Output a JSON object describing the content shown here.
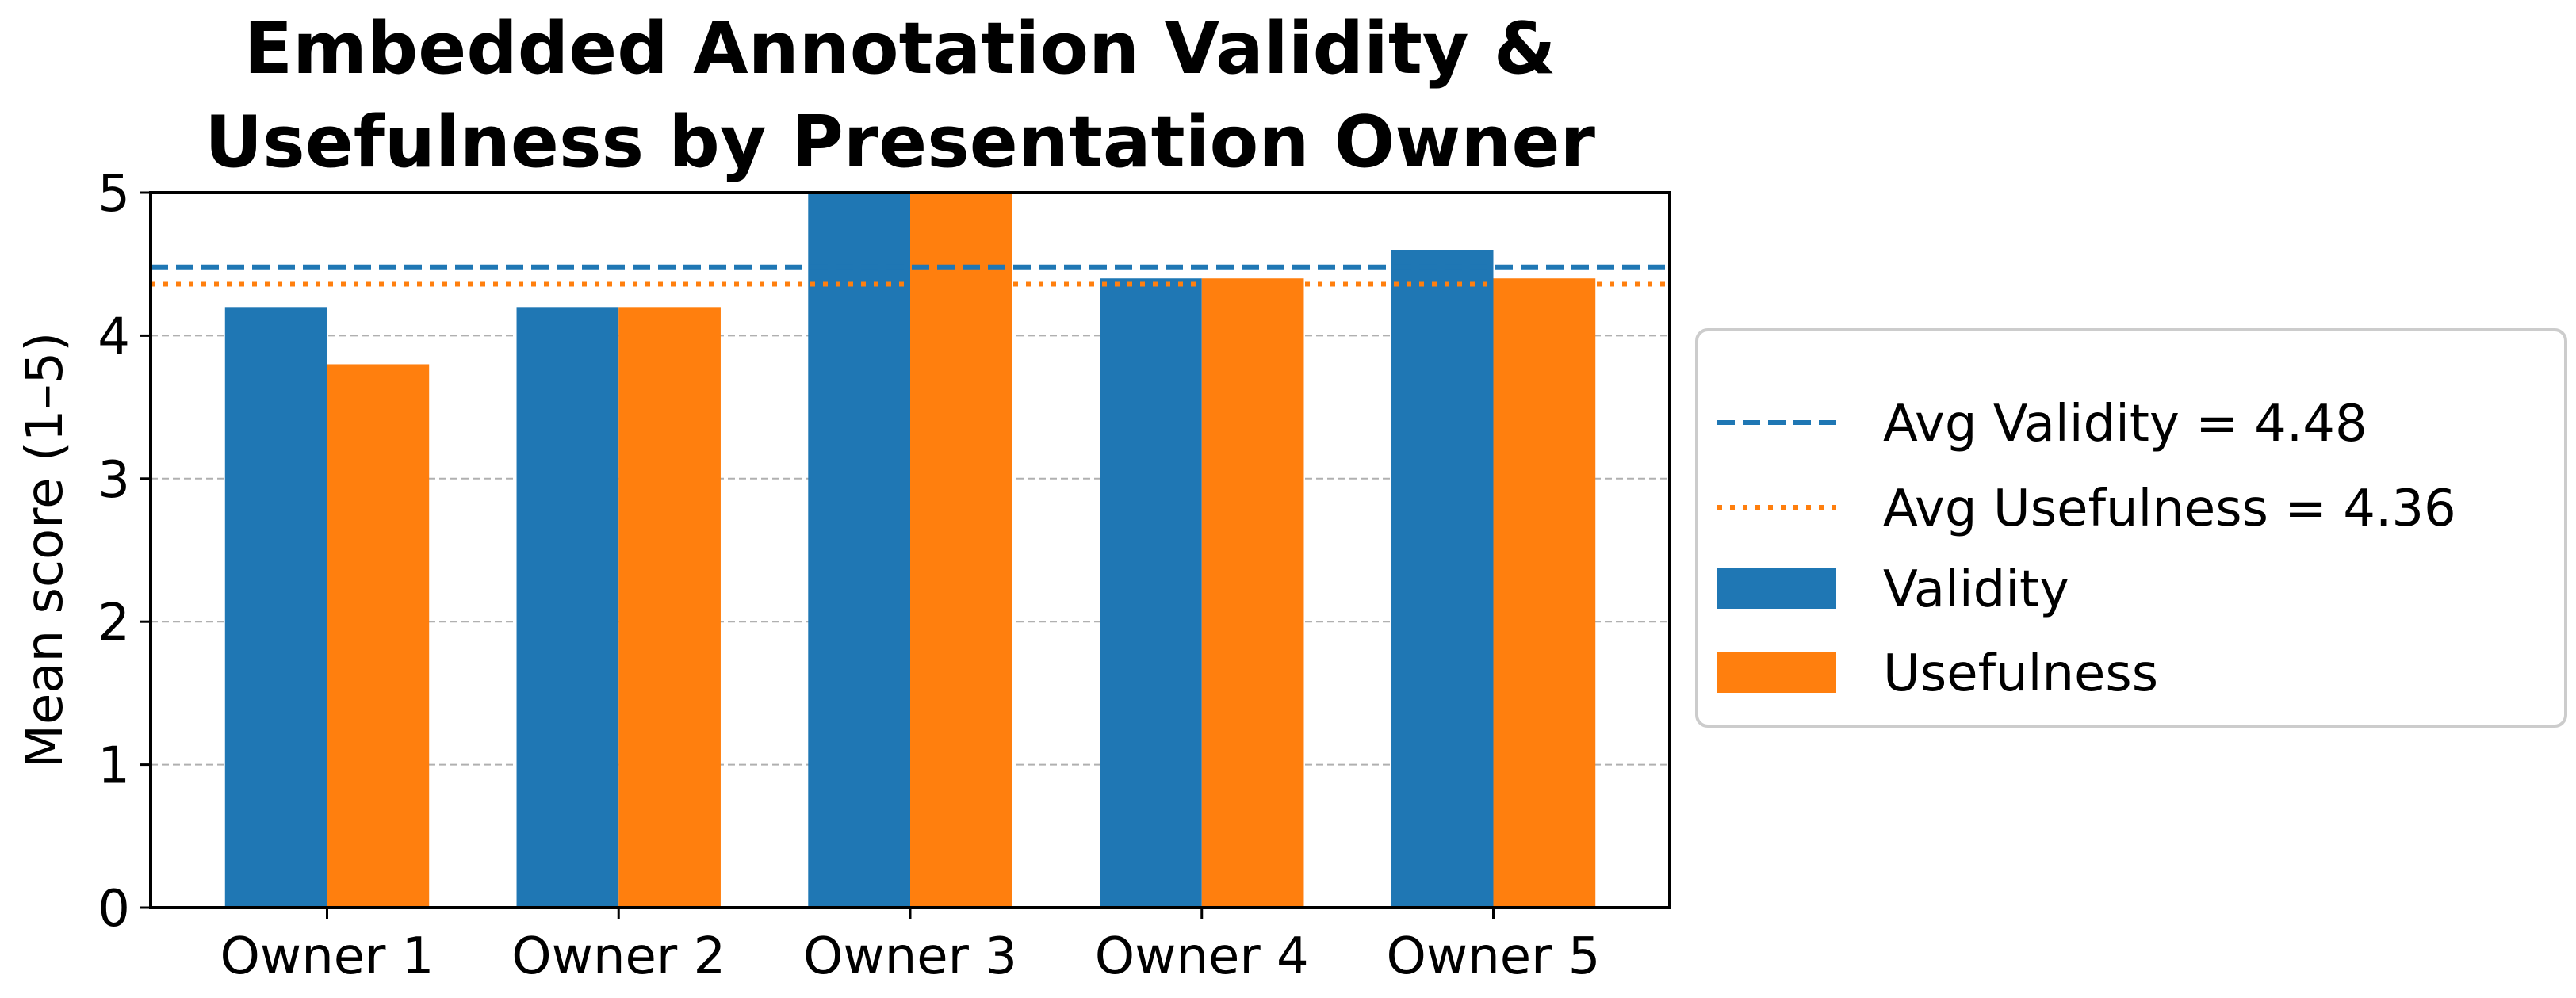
{
  "chart_data": {
    "type": "bar",
    "title_lines": [
      "Embedded Annotation Validity &",
      "Usefulness by Presentation Owner"
    ],
    "xlabel": "",
    "ylabel": "Mean score (1–5)",
    "categories": [
      "Owner 1",
      "Owner 2",
      "Owner 3",
      "Owner 4",
      "Owner 5"
    ],
    "series": [
      {
        "name": "Validity",
        "color": "#1f77b4",
        "values": [
          4.2,
          4.2,
          5.0,
          4.4,
          4.6
        ]
      },
      {
        "name": "Usefulness",
        "color": "#ff7f0e",
        "values": [
          3.8,
          4.2,
          5.0,
          4.4,
          4.4
        ]
      }
    ],
    "reference_lines": [
      {
        "label": "Avg Validity = 4.48",
        "value": 4.48,
        "color": "#1f77b4",
        "style": "dashed"
      },
      {
        "label": "Avg Usefulness = 4.36",
        "value": 4.36,
        "color": "#ff7f0e",
        "style": "dotted"
      }
    ],
    "ylim": [
      0,
      5
    ],
    "yticks": [
      "0",
      "1",
      "2",
      "3",
      "4",
      "5"
    ],
    "grid": "horizontal dashed",
    "legend_position": "right, outside plot"
  }
}
